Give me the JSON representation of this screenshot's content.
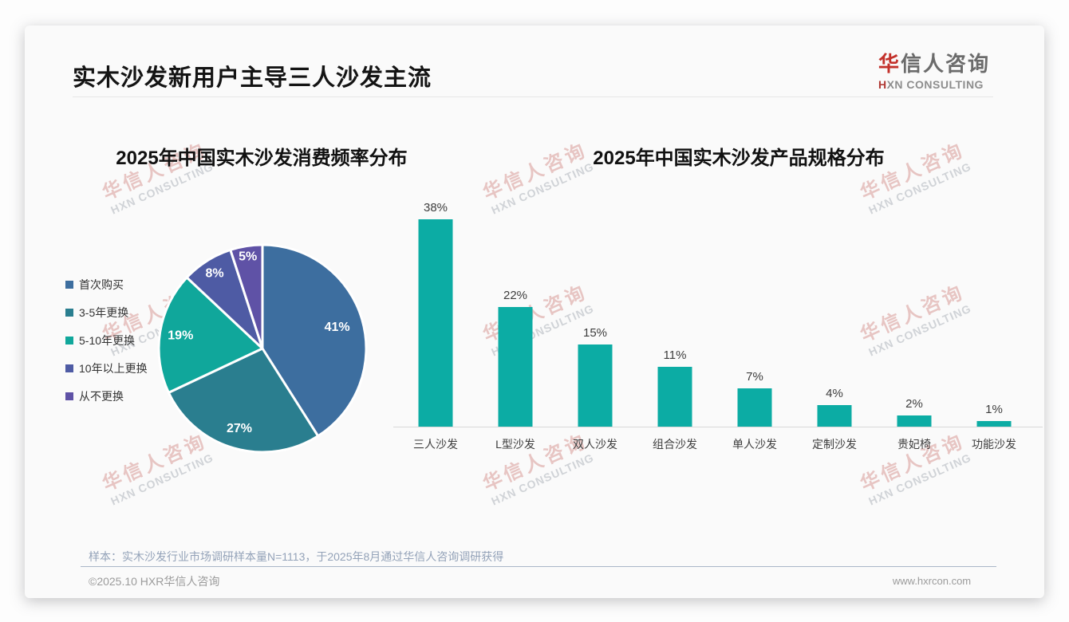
{
  "header": {
    "main_title": "实木沙发新用户主导三人沙发主流",
    "logo": {
      "cn_accent": "华",
      "cn_rest": "信人咨询",
      "en_accent": "H",
      "en_rest": "XN CONSULTING"
    }
  },
  "watermark": {
    "cn": "华信人咨询",
    "en": "HXN CONSULTING"
  },
  "footer": {
    "note": "样本：实木沙发行业市场调研样本量N=1113，于2025年8月通过华信人咨询调研获得",
    "copyright": "©2025.10 HXR华信人咨询",
    "website": "www.hxrcon.com"
  },
  "chart_data": [
    {
      "type": "pie",
      "title": "2025年中国实木沙发消费频率分布",
      "labels": [
        "首次购买",
        "3-5年更换",
        "5-10年更换",
        "10年以上更换",
        "从不更换"
      ],
      "values": [
        41,
        27,
        19,
        8,
        5
      ],
      "data_labels": [
        "41%",
        "27%",
        "19%",
        "8%",
        "5%"
      ],
      "colors": [
        "#3D6E9F",
        "#2A7E8F",
        "#10A79B",
        "#4E5BA4",
        "#5F52A6"
      ],
      "unit": "%",
      "start_angle_deg": 0,
      "direction": "clockwise",
      "legend_position": "left",
      "label_radius": [
        0.75,
        0.8,
        0.8,
        0.86,
        0.9
      ]
    },
    {
      "type": "bar",
      "title": "2025年中国实木沙发产品规格分布",
      "categories": [
        "三人沙发",
        "L型沙发",
        "双人沙发",
        "组合沙发",
        "单人沙发",
        "定制沙发",
        "贵妃椅",
        "功能沙发"
      ],
      "values": [
        38,
        22,
        15,
        11,
        7,
        4,
        2,
        1
      ],
      "data_labels": [
        "38%",
        "22%",
        "15%",
        "11%",
        "7%",
        "4%",
        "2%",
        "1%"
      ],
      "bar_color": "#0CACA4",
      "unit": "%",
      "ylim": [
        0,
        40
      ],
      "grid": false,
      "legend_position": "none"
    }
  ]
}
